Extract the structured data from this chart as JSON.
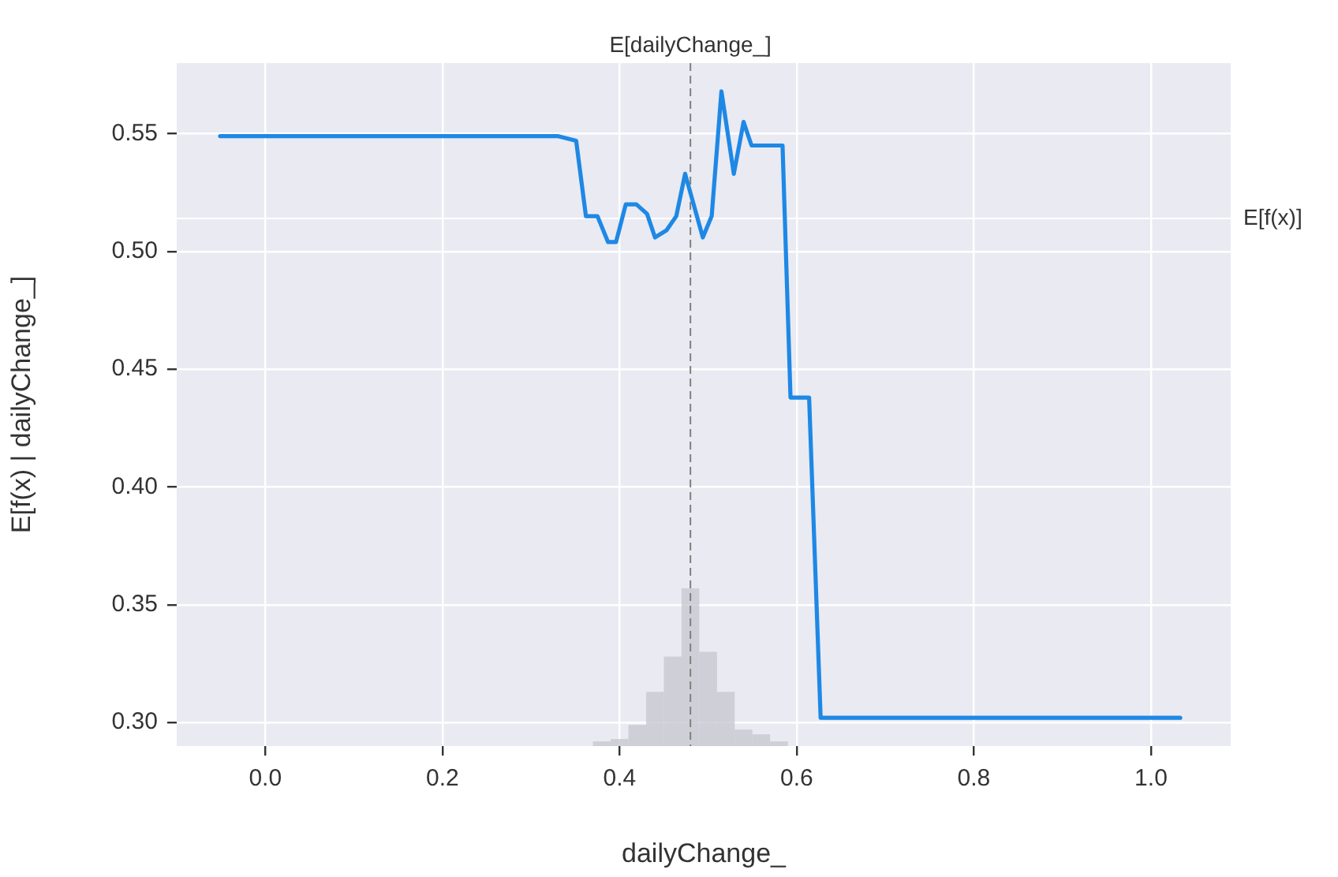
{
  "chart_data": {
    "type": "line",
    "xlabel": "dailyChange_",
    "ylabel": "E[f(x) | dailyChange_]",
    "xlim": [
      -0.1,
      1.09
    ],
    "ylim": [
      0.29,
      0.58
    ],
    "xticks": [
      {
        "value": 0,
        "label": "0.0"
      },
      0.2,
      0.4,
      0.6,
      0.8,
      {
        "value": 1,
        "label": "1.0"
      }
    ],
    "yticks": [
      {
        "value": 0.3,
        "label": "0.30"
      },
      0.35,
      {
        "value": 0.4,
        "label": "0.40"
      },
      0.45,
      {
        "value": 0.5,
        "label": "0.50"
      },
      0.55
    ],
    "grid": true,
    "legend": false,
    "marker": "none",
    "line_style": "solid",
    "series": [
      {
        "color": "#1e88e5",
        "x": [
          -0.051,
          0.33,
          0.351,
          0.362,
          0.375,
          0.387,
          0.396,
          0.407,
          0.419,
          0.431,
          0.44,
          0.453,
          0.464,
          0.474,
          0.494,
          0.504,
          0.515,
          0.529,
          0.54,
          0.549,
          0.584,
          0.593,
          0.614,
          0.627,
          1.033
        ],
        "values": [
          0.549,
          0.549,
          0.547,
          0.515,
          0.515,
          0.504,
          0.504,
          0.52,
          0.52,
          0.516,
          0.506,
          0.509,
          0.515,
          0.533,
          0.506,
          0.515,
          0.568,
          0.533,
          0.555,
          0.545,
          0.545,
          0.438,
          0.438,
          0.302,
          0.302
        ]
      },
      {
        "type": "histogram",
        "color": "#c8c8cf",
        "bins": [
          0.37,
          0.39,
          0.41,
          0.43,
          0.45,
          0.47,
          0.49,
          0.51,
          0.53,
          0.55,
          0.57,
          0.59
        ],
        "base": [
          0.29,
          0.29,
          0.29,
          0.29,
          0.29,
          0.29,
          0.29,
          0.29,
          0.29,
          0.29,
          0.29
        ],
        "values": [
          0.002,
          0.003,
          0.009,
          0.023,
          0.038,
          0.067,
          0.04,
          0.023,
          0.007,
          0.005,
          0.002
        ]
      }
    ],
    "ref_lines": [
      {
        "axis": "x",
        "value": 0.48,
        "label": "E[dailyChange_]",
        "color": "#808080",
        "line_style": "dashed"
      },
      {
        "axis": "y",
        "value": 0.514,
        "label": "E[f(x)]",
        "color": "#ffffff",
        "line_style": "solid"
      }
    ]
  }
}
